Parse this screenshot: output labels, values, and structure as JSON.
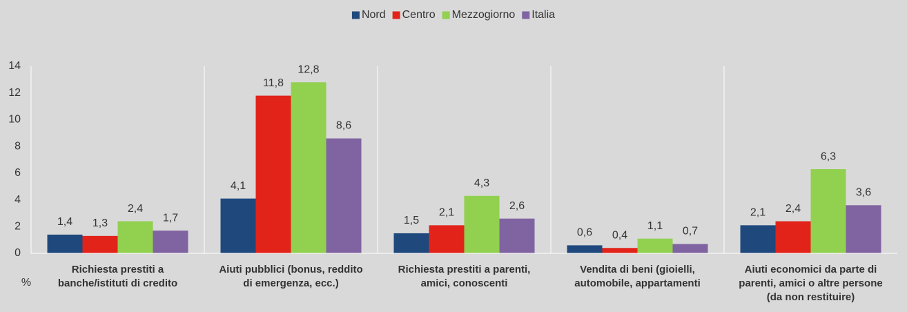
{
  "chart_data": {
    "type": "bar",
    "categories": [
      "Richiesta prestiti a\nbanche/istituti di credito",
      "Aiuti pubblici (bonus, reddito\ndi emergenza, ecc.)",
      "Richiesta prestiti a parenti,\namici, conoscenti",
      "Vendita di beni (gioielli,\nautomobile, appartamenti",
      "Aiuti economici da parte di\nparenti, amici  o altre persone\n(da non restituire)"
    ],
    "series": [
      {
        "name": "Nord",
        "color": "#1f497d",
        "values": [
          1.4,
          4.1,
          1.5,
          0.6,
          2.1
        ],
        "value_labels": [
          "1,4",
          "4,1",
          "1,5",
          "0,6",
          "2,1"
        ]
      },
      {
        "name": "Centro",
        "color": "#e2231a",
        "values": [
          1.3,
          11.8,
          2.1,
          0.4,
          2.4
        ],
        "value_labels": [
          "1,3",
          "11,8",
          "2,1",
          "0,4",
          "2,4"
        ]
      },
      {
        "name": "Mezzogiorno",
        "color": "#92d050",
        "values": [
          2.4,
          12.8,
          4.3,
          1.1,
          6.3
        ],
        "value_labels": [
          "2,4",
          "12,8",
          "4,3",
          "1,1",
          "6,3"
        ]
      },
      {
        "name": "Italia",
        "color": "#8064a2",
        "values": [
          1.7,
          8.6,
          2.6,
          0.7,
          3.6
        ],
        "value_labels": [
          "1,7",
          "8,6",
          "2,6",
          "0,7",
          "3,6"
        ]
      }
    ],
    "y_label": "%",
    "ylim": [
      0,
      14
    ],
    "yticks": [
      0,
      2,
      4,
      6,
      8,
      10,
      12,
      14
    ],
    "grid": false,
    "legend": "top"
  }
}
